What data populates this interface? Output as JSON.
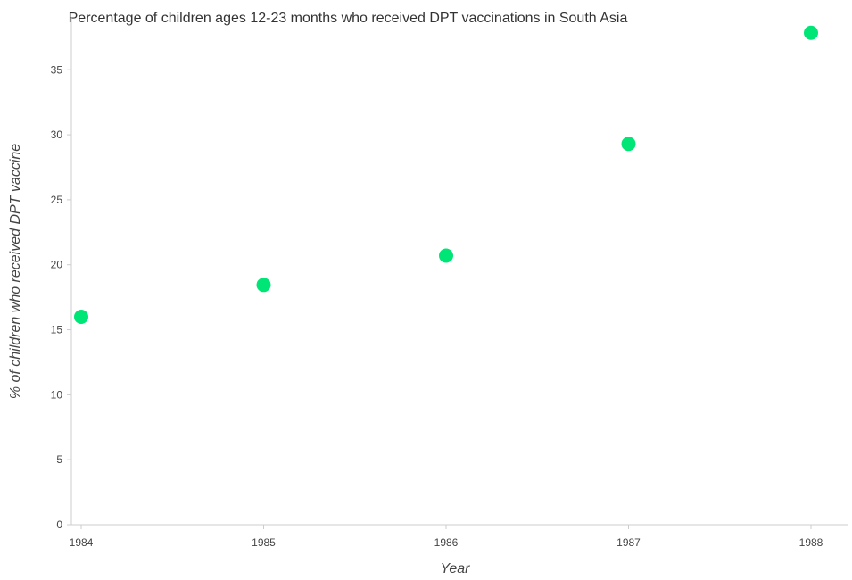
{
  "chart_data": {
    "type": "scatter",
    "title": "Percentage of children ages 12-23 months who received DPT vaccinations in South Asia",
    "xlabel": "Year",
    "ylabel": "% of children who received DPT vaccine",
    "x": [
      "1984",
      "1985",
      "1986",
      "1987",
      "1988"
    ],
    "values": [
      16.0,
      18.45,
      20.7,
      29.3,
      37.85
    ],
    "ylim": [
      0,
      39
    ],
    "yticks": [
      0,
      5,
      10,
      15,
      20,
      25,
      30,
      35
    ],
    "ytick_labels": [
      "0",
      "5",
      "10",
      "15",
      "20",
      "25",
      "30",
      "35"
    ],
    "grid": false,
    "marker_color": "#00e676"
  }
}
